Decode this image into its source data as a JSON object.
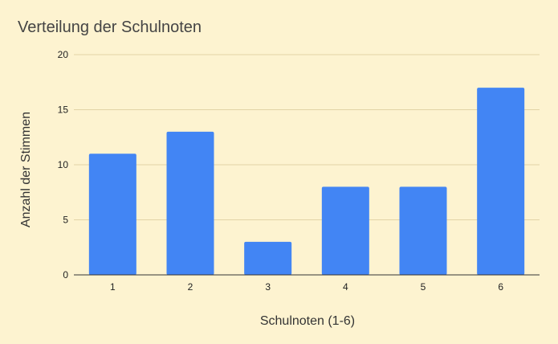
{
  "chart_data": {
    "type": "bar",
    "title": "Verteilung der Schulnoten",
    "xlabel": "Schulnoten (1-6)",
    "ylabel": "Anzahl der Stimmen",
    "categories": [
      "1",
      "2",
      "3",
      "4",
      "5",
      "6"
    ],
    "values": [
      11,
      13,
      3,
      8,
      8,
      17
    ],
    "ylim": [
      0,
      20
    ],
    "yticks": [
      0,
      5,
      10,
      15,
      20
    ],
    "grid": true,
    "legend": "none",
    "colors": {
      "bar": "#4285f4",
      "background": "#fdf3d0",
      "gridline": "#e2d3a6"
    }
  }
}
